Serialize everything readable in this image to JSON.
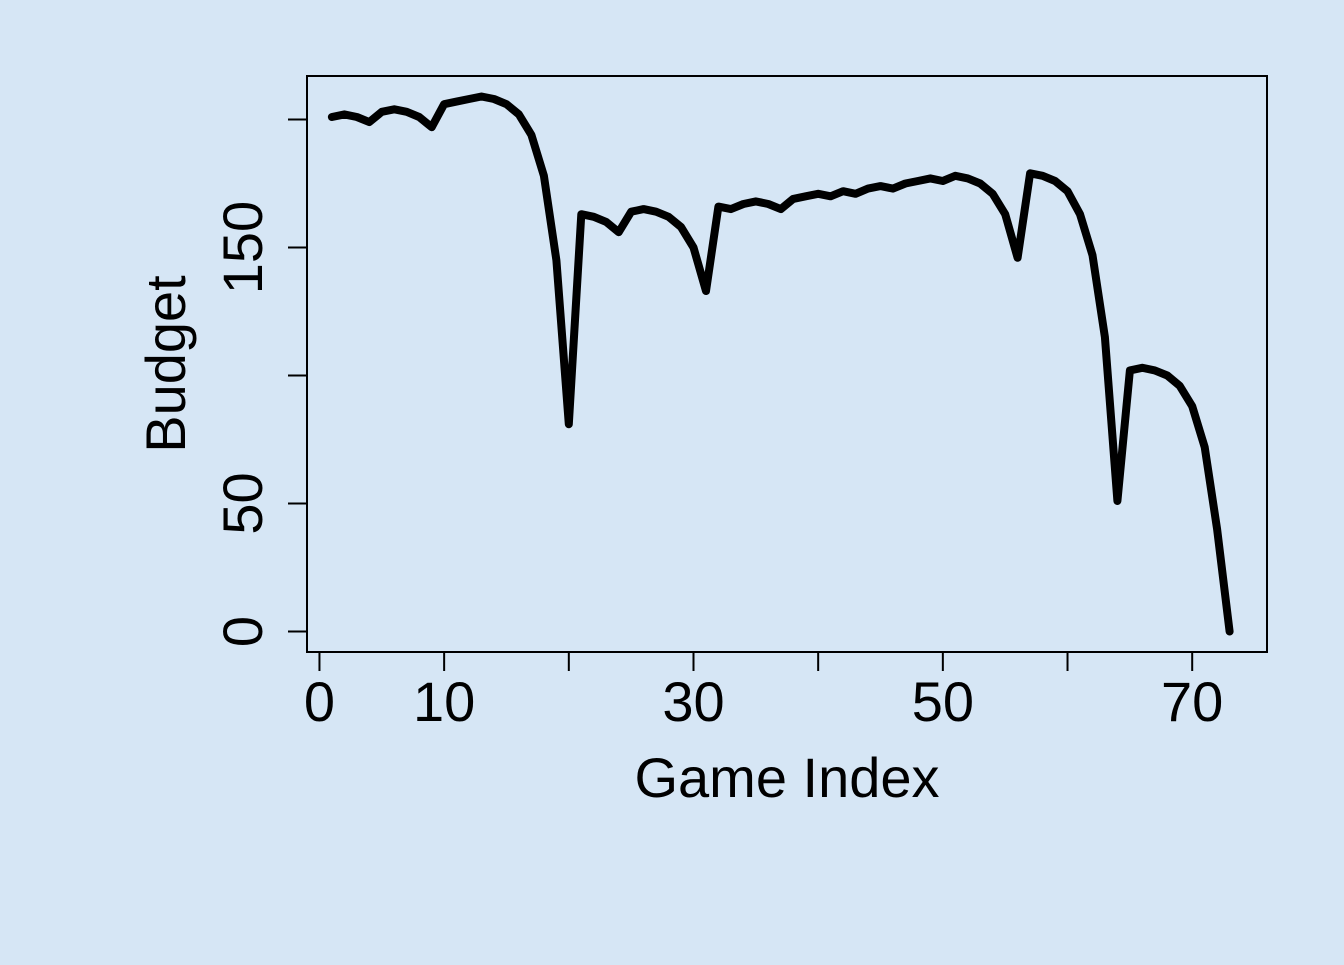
{
  "chart_data": {
    "type": "line",
    "title": "",
    "xlabel": "Game Index",
    "ylabel": "Budget",
    "xlim": [
      -1,
      76
    ],
    "ylim": [
      -8,
      217
    ],
    "x_ticks": [
      0,
      10,
      20,
      30,
      40,
      50,
      60,
      70
    ],
    "x_tick_labels": [
      "0",
      "10",
      "",
      "30",
      "",
      "50",
      "",
      "70"
    ],
    "y_ticks": [
      0,
      50,
      100,
      150,
      200
    ],
    "y_tick_labels": [
      "0",
      "50",
      "",
      "150",
      ""
    ],
    "grid": false,
    "legend": "none",
    "line_color": "#000000",
    "background_color": "#d6e6f5",
    "series": [
      {
        "values": [
          [
            1,
            201
          ],
          [
            2,
            202
          ],
          [
            3,
            201
          ],
          [
            4,
            199
          ],
          [
            5,
            203
          ],
          [
            6,
            204
          ],
          [
            7,
            203
          ],
          [
            8,
            201
          ],
          [
            9,
            197
          ],
          [
            10,
            206
          ],
          [
            11,
            207
          ],
          [
            12,
            208
          ],
          [
            13,
            209
          ],
          [
            14,
            208
          ],
          [
            15,
            206
          ],
          [
            16,
            202
          ],
          [
            17,
            194
          ],
          [
            18,
            178
          ],
          [
            19,
            145
          ],
          [
            20,
            81
          ],
          [
            21,
            163
          ],
          [
            22,
            162
          ],
          [
            23,
            160
          ],
          [
            24,
            156
          ],
          [
            25,
            164
          ],
          [
            26,
            165
          ],
          [
            27,
            164
          ],
          [
            28,
            162
          ],
          [
            29,
            158
          ],
          [
            30,
            150
          ],
          [
            31,
            133
          ],
          [
            32,
            166
          ],
          [
            33,
            165
          ],
          [
            34,
            167
          ],
          [
            35,
            168
          ],
          [
            36,
            167
          ],
          [
            37,
            165
          ],
          [
            38,
            169
          ],
          [
            39,
            170
          ],
          [
            40,
            171
          ],
          [
            41,
            170
          ],
          [
            42,
            172
          ],
          [
            43,
            171
          ],
          [
            44,
            173
          ],
          [
            45,
            174
          ],
          [
            46,
            173
          ],
          [
            47,
            175
          ],
          [
            48,
            176
          ],
          [
            49,
            177
          ],
          [
            50,
            176
          ],
          [
            51,
            178
          ],
          [
            52,
            177
          ],
          [
            53,
            175
          ],
          [
            54,
            171
          ],
          [
            55,
            163
          ],
          [
            56,
            146
          ],
          [
            57,
            179
          ],
          [
            58,
            178
          ],
          [
            59,
            176
          ],
          [
            60,
            172
          ],
          [
            61,
            163
          ],
          [
            62,
            147
          ],
          [
            63,
            115
          ],
          [
            64,
            51
          ],
          [
            65,
            102
          ],
          [
            66,
            103
          ],
          [
            67,
            102
          ],
          [
            68,
            100
          ],
          [
            69,
            96
          ],
          [
            70,
            88
          ],
          [
            71,
            72
          ],
          [
            72,
            40
          ],
          [
            73,
            0
          ]
        ]
      }
    ]
  }
}
